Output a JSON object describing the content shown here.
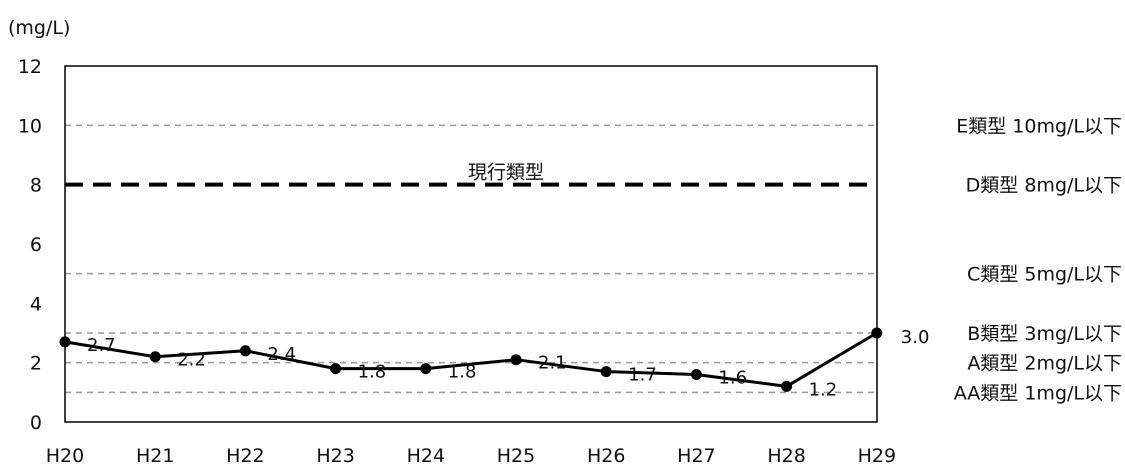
{
  "chart_data": {
    "type": "line",
    "unit_label": "(mg/L)",
    "categories": [
      "H20",
      "H21",
      "H22",
      "H23",
      "H24",
      "H25",
      "H26",
      "H27",
      "H28",
      "H29"
    ],
    "values": [
      2.7,
      2.2,
      2.4,
      1.8,
      1.8,
      2.1,
      1.7,
      1.6,
      1.2,
      3.0
    ],
    "data_labels": [
      "2.7",
      "2.2",
      "2.4",
      "1.8",
      "1.8",
      "2.1",
      "1.7",
      "1.6",
      "1.2",
      "3.0"
    ],
    "ylim": [
      0,
      12
    ],
    "yticks": [
      0,
      2,
      4,
      6,
      8,
      10,
      12
    ],
    "grid": false,
    "reference_lines": [
      {
        "value": 10,
        "label": "E類型 10mg/L以下",
        "style": "dashed-thin"
      },
      {
        "value": 8,
        "label": "D類型 8mg/L以下",
        "style": "dashed-bold"
      },
      {
        "value": 5,
        "label": "C類型 5mg/L以下",
        "style": "dashed-thin"
      },
      {
        "value": 3,
        "label": "B類型 3mg/L以下",
        "style": "dashed-thin"
      },
      {
        "value": 2,
        "label": "A類型 2mg/L以下",
        "style": "dashed-thin"
      },
      {
        "value": 1,
        "label": "AA類型 1mg/L以下",
        "style": "dashed-thin"
      }
    ],
    "annotation": "現行類型",
    "colors": {
      "series": "#000000",
      "ref_thin": "#999999",
      "ref_bold": "#000000"
    }
  }
}
